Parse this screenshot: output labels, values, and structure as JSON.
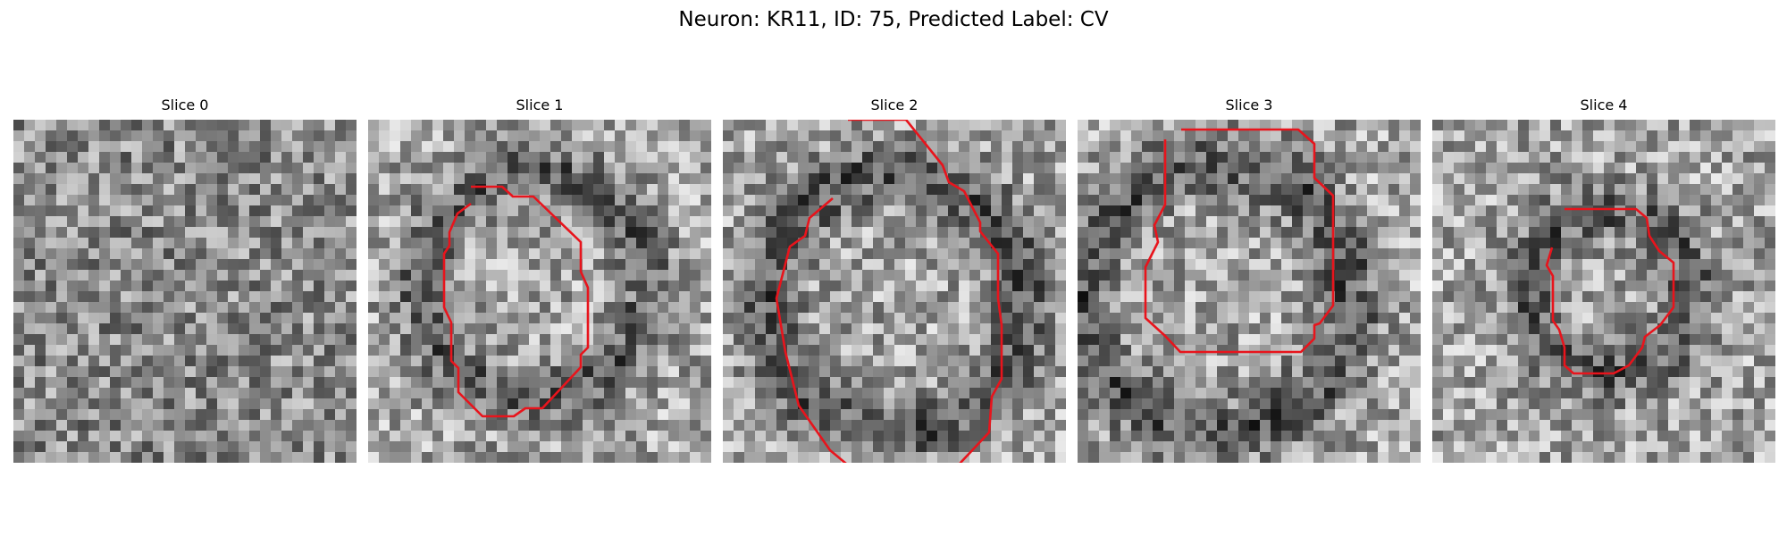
{
  "figure": {
    "title": "Neuron: KR11, ID: 75, Predicted Label: CV",
    "contour_color": "#e8141c"
  },
  "panels": [
    {
      "title": "Slice 0"
    },
    {
      "title": "Slice 1"
    },
    {
      "title": "Slice 2"
    },
    {
      "title": "Slice 3"
    },
    {
      "title": "Slice 4"
    }
  ]
}
